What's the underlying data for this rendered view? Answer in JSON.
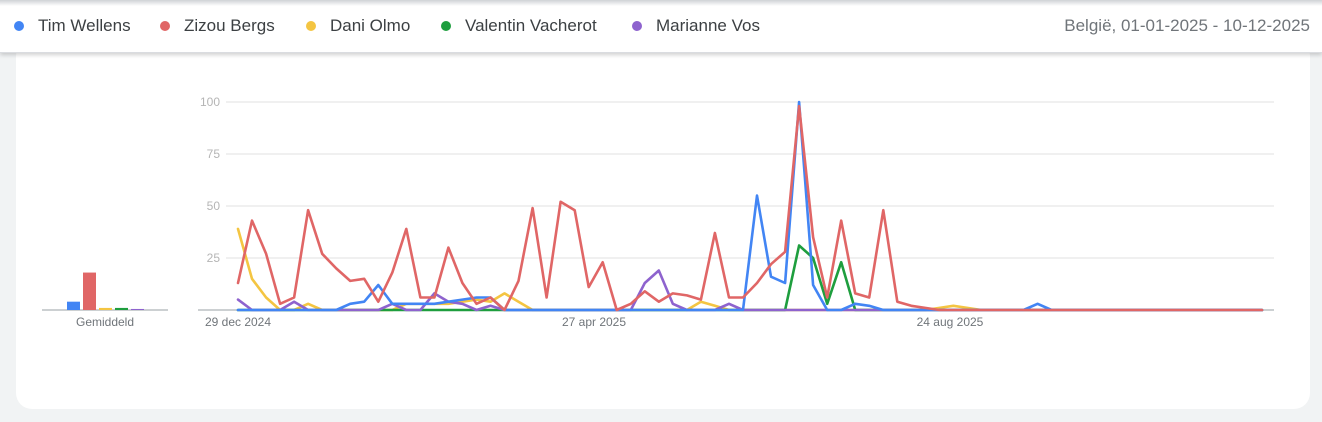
{
  "header": {
    "region_label": "België, 01-01-2025 - 10-12-2025"
  },
  "colors": {
    "Tim Wellens": "#4285f4",
    "Zizou Bergs": "#e06666",
    "Dani Olmo": "#f4c542",
    "Valentin Vacherot": "#1e9e3e",
    "Marianne Vos": "#8e63ce",
    "grid": "#e0e0e0",
    "tick": "#b5b5b5"
  },
  "chart_data": [
    {
      "type": "bar",
      "categories": [
        "Tim Wellens",
        "Zizou Bergs",
        "Dani Olmo",
        "Valentin Vacherot",
        "Marianne Vos"
      ],
      "values": [
        4,
        18,
        1,
        1,
        0.5
      ],
      "xlabel": "Gemiddeld",
      "ylim": [
        0,
        100
      ]
    },
    {
      "type": "line",
      "x_tick_labels": [
        "29 dec 2024",
        "27 apr 2025",
        "24 aug 2025"
      ],
      "y_ticks": [
        25,
        50,
        75,
        100
      ],
      "ylim": [
        0,
        100
      ],
      "grid": true,
      "legend_position": "top-left",
      "series": [
        {
          "name": "Tim Wellens",
          "values": [
            0,
            0,
            0,
            0,
            0,
            0,
            0,
            0,
            3,
            4,
            12,
            3,
            3,
            3,
            3,
            4,
            5,
            6,
            6,
            0,
            0,
            0,
            0,
            0,
            0,
            0,
            0,
            0,
            0,
            0,
            0,
            0,
            0,
            0,
            0,
            0,
            0,
            55,
            16,
            13,
            100,
            12,
            0,
            0,
            3,
            2,
            0,
            0,
            0,
            0,
            0,
            0,
            0,
            0,
            0,
            0,
            0,
            3,
            0,
            0,
            0,
            0,
            0,
            0,
            0,
            0,
            0,
            0,
            0,
            0,
            0,
            0,
            0,
            0
          ]
        },
        {
          "name": "Zizou Bergs",
          "values": [
            13,
            43,
            27,
            3,
            6,
            48,
            27,
            20,
            14,
            15,
            4,
            18,
            39,
            6,
            6,
            30,
            13,
            3,
            6,
            0,
            14,
            49,
            6,
            52,
            48,
            11,
            23,
            0,
            3,
            9,
            4,
            8,
            7,
            5,
            37,
            6,
            6,
            13,
            22,
            28,
            98,
            35,
            6,
            43,
            8,
            6,
            48,
            4,
            2,
            1,
            0,
            0,
            0,
            0,
            0,
            0,
            0,
            0,
            0,
            0,
            0,
            0,
            0,
            0,
            0,
            0,
            0,
            0,
            0,
            0,
            0,
            0,
            0,
            0
          ]
        },
        {
          "name": "Dani Olmo",
          "values": [
            39,
            15,
            6,
            0,
            0,
            3,
            0,
            0,
            0,
            0,
            0,
            0,
            3,
            3,
            3,
            3,
            4,
            5,
            4,
            8,
            4,
            0,
            0,
            0,
            0,
            0,
            0,
            0,
            0,
            0,
            0,
            0,
            0,
            4,
            2,
            0,
            0,
            0,
            0,
            0,
            0,
            0,
            0,
            0,
            0,
            0,
            0,
            0,
            0,
            0,
            1,
            2,
            1,
            0,
            0,
            0,
            0,
            0,
            0,
            0,
            0,
            0,
            0,
            0,
            0,
            0,
            0,
            0,
            0,
            0,
            0,
            0,
            0,
            0
          ]
        },
        {
          "name": "Valentin Vacherot",
          "values": [
            0,
            0,
            0,
            0,
            0,
            0,
            0,
            0,
            0,
            0,
            0,
            0,
            0,
            0,
            0,
            0,
            0,
            0,
            0,
            0,
            0,
            0,
            0,
            0,
            0,
            0,
            0,
            0,
            0,
            0,
            0,
            0,
            0,
            0,
            0,
            0,
            0,
            0,
            0,
            0,
            31,
            25,
            3,
            23,
            0,
            0,
            0,
            0,
            0,
            0,
            0,
            0,
            0,
            0,
            0,
            0,
            0,
            0,
            0,
            0,
            0,
            0,
            0,
            0,
            0,
            0,
            0,
            0,
            0,
            0,
            0,
            0,
            0,
            0
          ]
        },
        {
          "name": "Marianne Vos",
          "values": [
            5,
            0,
            0,
            0,
            4,
            0,
            0,
            0,
            0,
            0,
            0,
            3,
            0,
            0,
            8,
            4,
            3,
            0,
            2,
            0,
            0,
            0,
            0,
            0,
            0,
            0,
            0,
            0,
            0,
            13,
            19,
            3,
            0,
            0,
            0,
            3,
            0,
            0,
            0,
            0,
            0,
            0,
            0,
            0,
            0,
            0,
            0,
            0,
            0,
            0,
            0,
            0,
            0,
            0,
            0,
            0,
            0,
            0,
            0,
            0,
            0,
            0,
            0,
            0,
            0,
            0,
            0,
            0,
            0,
            0,
            0,
            0,
            0,
            0
          ]
        }
      ]
    }
  ]
}
